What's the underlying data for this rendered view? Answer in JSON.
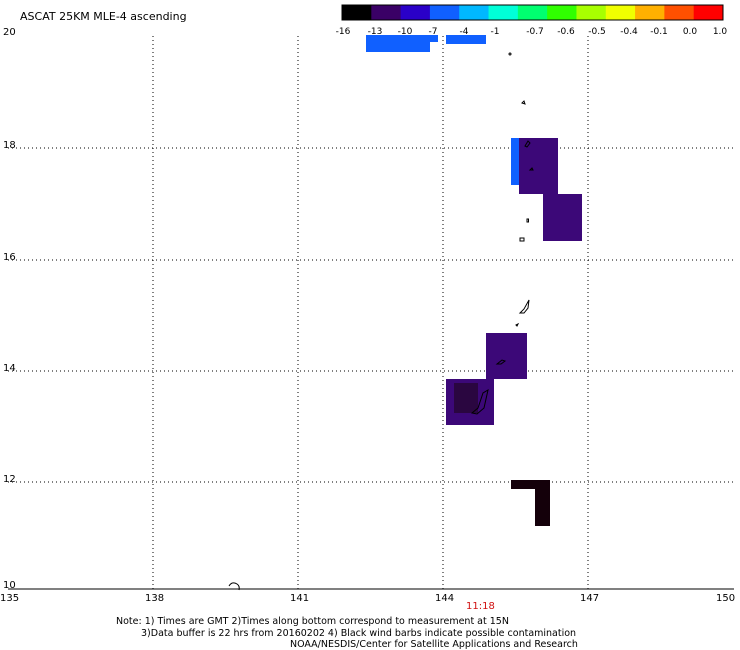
{
  "title": "ASCAT 25KM MLE-4 ascending",
  "colorbar": {
    "labels": [
      "-16",
      "-13",
      "-10",
      "-7",
      "-4",
      "-1",
      "-0.7",
      "-0.6",
      "-0.5",
      "-0.4",
      "-0.1",
      "0.0",
      "1.0"
    ],
    "colors": [
      "#000000",
      "#3a0066",
      "#2a00c8",
      "#1060ff",
      "#00b8ff",
      "#00ffd8",
      "#00ff70",
      "#30ff00",
      "#a8ff00",
      "#f0ff00",
      "#ffb000",
      "#ff5000",
      "#ff0000"
    ]
  },
  "map": {
    "lat_labels": [
      "20",
      "18",
      "16",
      "14",
      "12",
      "10"
    ],
    "lon_labels": [
      "135",
      "138",
      "141",
      "144",
      "147",
      "150"
    ]
  },
  "time_label": "11:18",
  "notes": {
    "line1": "Note: 1) Times are GMT 2)Times along bottom correspond to measurement at 15N",
    "line2": "3)Data buffer is 22 hrs from 20160202 4) Black wind barbs indicate possible contamination",
    "line3": "NOAA/NESDIS/Center for Satellite Applications and Research"
  },
  "swath_colors": {
    "blue": "#1060ff",
    "purple": "#3c0878",
    "dark_purple": "#2a0640",
    "black": "#14000a"
  }
}
